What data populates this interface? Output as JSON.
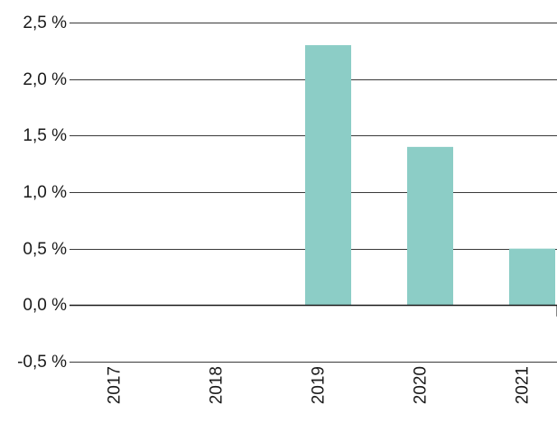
{
  "chart_data": {
    "type": "bar",
    "title": "",
    "xlabel": "",
    "ylabel": "",
    "categories": [
      "2017",
      "2018",
      "2019",
      "2020",
      "2021"
    ],
    "series": [
      {
        "values": [
          0,
          0,
          2.3,
          1.4,
          0.5
        ],
        "color": "#8ccdc6"
      },
      {
        "values": [
          0,
          0,
          0,
          0,
          -0.1
        ],
        "color": "#858585"
      }
    ],
    "ylim": [
      -0.5,
      2.5
    ],
    "yticks": [
      -0.5,
      0.0,
      0.5,
      1.0,
      1.5,
      2.0,
      2.5
    ],
    "ytick_labels": [
      "-0,5 %",
      "0,0 %",
      "0,5 %",
      "1,0 %",
      "1,5 %",
      "2,0 %",
      "2,5 %"
    ],
    "grid": true,
    "legend": "none"
  }
}
